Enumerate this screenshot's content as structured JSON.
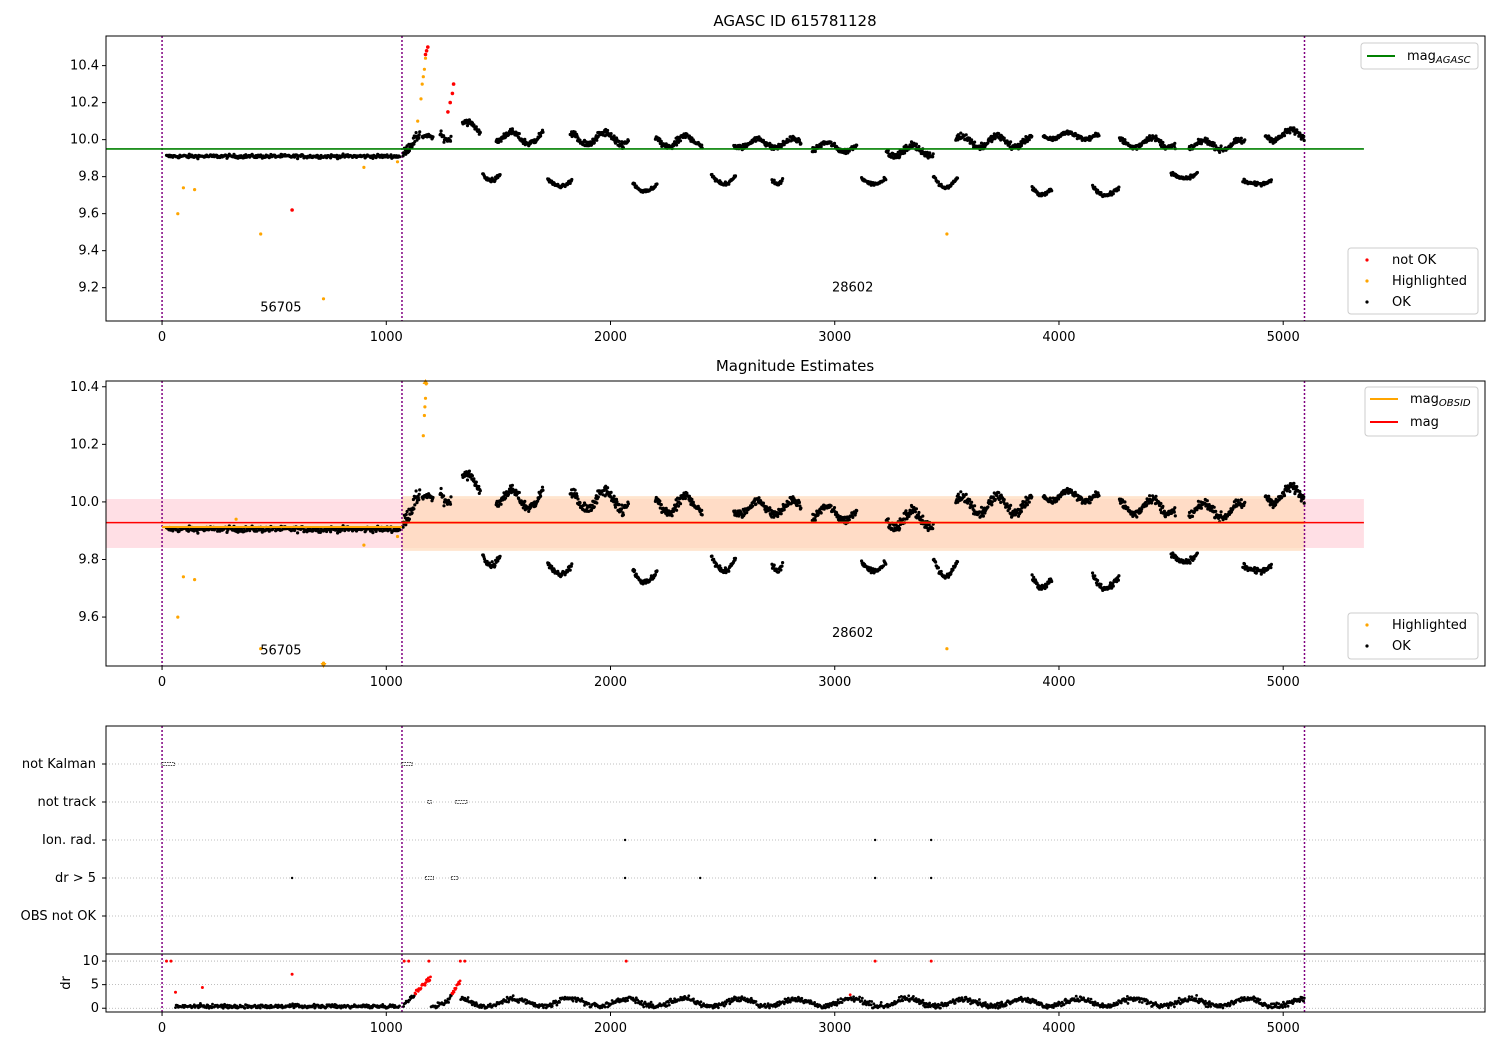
{
  "colors": {
    "ok": "#000000",
    "highlighted": "#ffa500",
    "not_ok": "#ff0000",
    "agasc_line": "#008000",
    "obsid_line": "#ffa500",
    "mag_line": "#ff0000",
    "mag_band": "#ffc0cb",
    "obsid_band": "#ffdab9",
    "obs_boundary": "#800080"
  },
  "obs_boundaries": [
    0,
    1070,
    5095
  ],
  "obs_labels": [
    {
      "text": "56705",
      "x": 530,
      "panel1_y": 9.07,
      "panel2_y": 9.47
    },
    {
      "text": "28602",
      "x": 3080,
      "panel1_y": 9.18,
      "panel2_y": 9.53
    }
  ],
  "chart_data": [
    {
      "type": "scatter",
      "title": "AGASC ID 615781128",
      "xlim": [
        -250,
        5900
      ],
      "ylim": [
        9.02,
        10.56
      ],
      "xticks": [
        0,
        1000,
        2000,
        3000,
        4000,
        5000
      ],
      "yticks": [
        9.2,
        9.4,
        9.6,
        9.8,
        10.0,
        10.2,
        10.4
      ],
      "hline": {
        "name": "mag",
        "subscript": "AGASC",
        "y": 9.95,
        "x_range": [
          -250,
          5360
        ]
      },
      "legend_lines": [
        {
          "name": "mag",
          "subscript": "AGASC",
          "color_key": "agasc_line"
        }
      ],
      "legend_points": [
        {
          "name": "not OK",
          "color_key": "not_ok"
        },
        {
          "name": "Highlighted",
          "color_key": "highlighted"
        },
        {
          "name": "OK",
          "color_key": "ok"
        }
      ],
      "outliers_highlighted": [
        [
          70,
          9.6
        ],
        [
          95,
          9.74
        ],
        [
          145,
          9.73
        ],
        [
          440,
          9.49
        ],
        [
          720,
          9.14
        ],
        [
          900,
          9.85
        ],
        [
          1050,
          9.88
        ],
        [
          3500,
          9.49
        ],
        [
          1140,
          10.1
        ],
        [
          1155,
          10.22
        ],
        [
          1160,
          10.3
        ],
        [
          1165,
          10.34
        ],
        [
          1170,
          10.38
        ],
        [
          1175,
          10.44
        ]
      ],
      "outliers_not_ok": [
        [
          580,
          9.62
        ],
        [
          1175,
          10.46
        ],
        [
          1180,
          10.48
        ],
        [
          1185,
          10.5
        ],
        [
          1275,
          10.15
        ],
        [
          1285,
          10.2
        ],
        [
          1295,
          10.25
        ],
        [
          1300,
          10.3
        ]
      ]
    },
    {
      "type": "scatter",
      "title": "Magnitude Estimates",
      "xlim": [
        -250,
        5900
      ],
      "ylim": [
        9.43,
        10.42
      ],
      "xticks": [
        0,
        1000,
        2000,
        3000,
        4000,
        5000
      ],
      "yticks": [
        9.6,
        9.8,
        10.0,
        10.2,
        10.4
      ],
      "mag_band": {
        "y": [
          9.84,
          10.01
        ],
        "x_range": [
          -250,
          5360
        ]
      },
      "obsid_band": [
        {
          "x_range": [
            0,
            1070
          ],
          "y": [
            9.9,
            9.93
          ]
        },
        {
          "x_range": [
            1070,
            5095
          ],
          "y": [
            9.83,
            10.02
          ]
        }
      ],
      "mag_line": {
        "name": "mag",
        "y": 9.928,
        "x_range": [
          -250,
          5360
        ]
      },
      "obsid_lines": [
        {
          "x_range": [
            0,
            1070
          ],
          "y": 9.913
        },
        {
          "x_range": [
            1070,
            5095
          ],
          "y": 9.928
        }
      ],
      "legend_lines": [
        {
          "name": "mag",
          "subscript": "OBSID",
          "color_key": "obsid_line"
        },
        {
          "name": "mag",
          "subscript": "",
          "color_key": "mag_line"
        }
      ],
      "legend_points": [
        {
          "name": "Highlighted",
          "color_key": "highlighted"
        },
        {
          "name": "OK",
          "color_key": "ok"
        }
      ],
      "outliers_highlighted": [
        [
          70,
          9.6
        ],
        [
          95,
          9.74
        ],
        [
          145,
          9.73
        ],
        [
          330,
          9.94
        ],
        [
          440,
          9.49
        ],
        [
          720,
          9.44
        ],
        [
          900,
          9.85
        ],
        [
          1050,
          9.88
        ],
        [
          3500,
          9.49
        ],
        [
          1165,
          10.23
        ],
        [
          1170,
          10.3
        ],
        [
          1172,
          10.33
        ],
        [
          1175,
          10.36
        ],
        [
          1178,
          10.41
        ]
      ]
    },
    {
      "type": "scatter",
      "xlim": [
        -250,
        5900
      ],
      "categories": [
        "not Kalman",
        "not track",
        "Ion. rad.",
        "dr > 5",
        "OBS not OK"
      ],
      "flag_segments": {
        "not Kalman": [
          [
            0,
            55
          ],
          [
            1070,
            1115
          ]
        ],
        "not track": [
          [
            1185,
            1200
          ],
          [
            1310,
            1360
          ]
        ],
        "Ion. rad.": [
          [
            2065,
            2068
          ],
          [
            3180,
            3183
          ],
          [
            3430,
            3433
          ]
        ],
        "dr > 5": [
          [
            580,
            583
          ],
          [
            1175,
            1210
          ],
          [
            1290,
            1320
          ],
          [
            2065,
            2068
          ],
          [
            2400,
            2403
          ],
          [
            3180,
            3183
          ],
          [
            3430,
            3433
          ]
        ],
        "OBS not OK": []
      }
    },
    {
      "type": "scatter",
      "ylabel": "dr",
      "xlim": [
        -250,
        5900
      ],
      "ylim": [
        -0.8,
        11.5
      ],
      "xticks": [
        0,
        1000,
        2000,
        3000,
        4000,
        5000
      ],
      "yticks": [
        0,
        5,
        10
      ],
      "red_points": [
        [
          20,
          10
        ],
        [
          40,
          10
        ],
        [
          1080,
          10
        ],
        [
          1100,
          10
        ],
        [
          1190,
          10
        ],
        [
          1330,
          10
        ],
        [
          1350,
          10
        ],
        [
          2070,
          10
        ],
        [
          3180,
          10
        ],
        [
          3430,
          10
        ],
        [
          580,
          7.2
        ],
        [
          60,
          3.4
        ],
        [
          180,
          4.4
        ]
      ]
    }
  ]
}
